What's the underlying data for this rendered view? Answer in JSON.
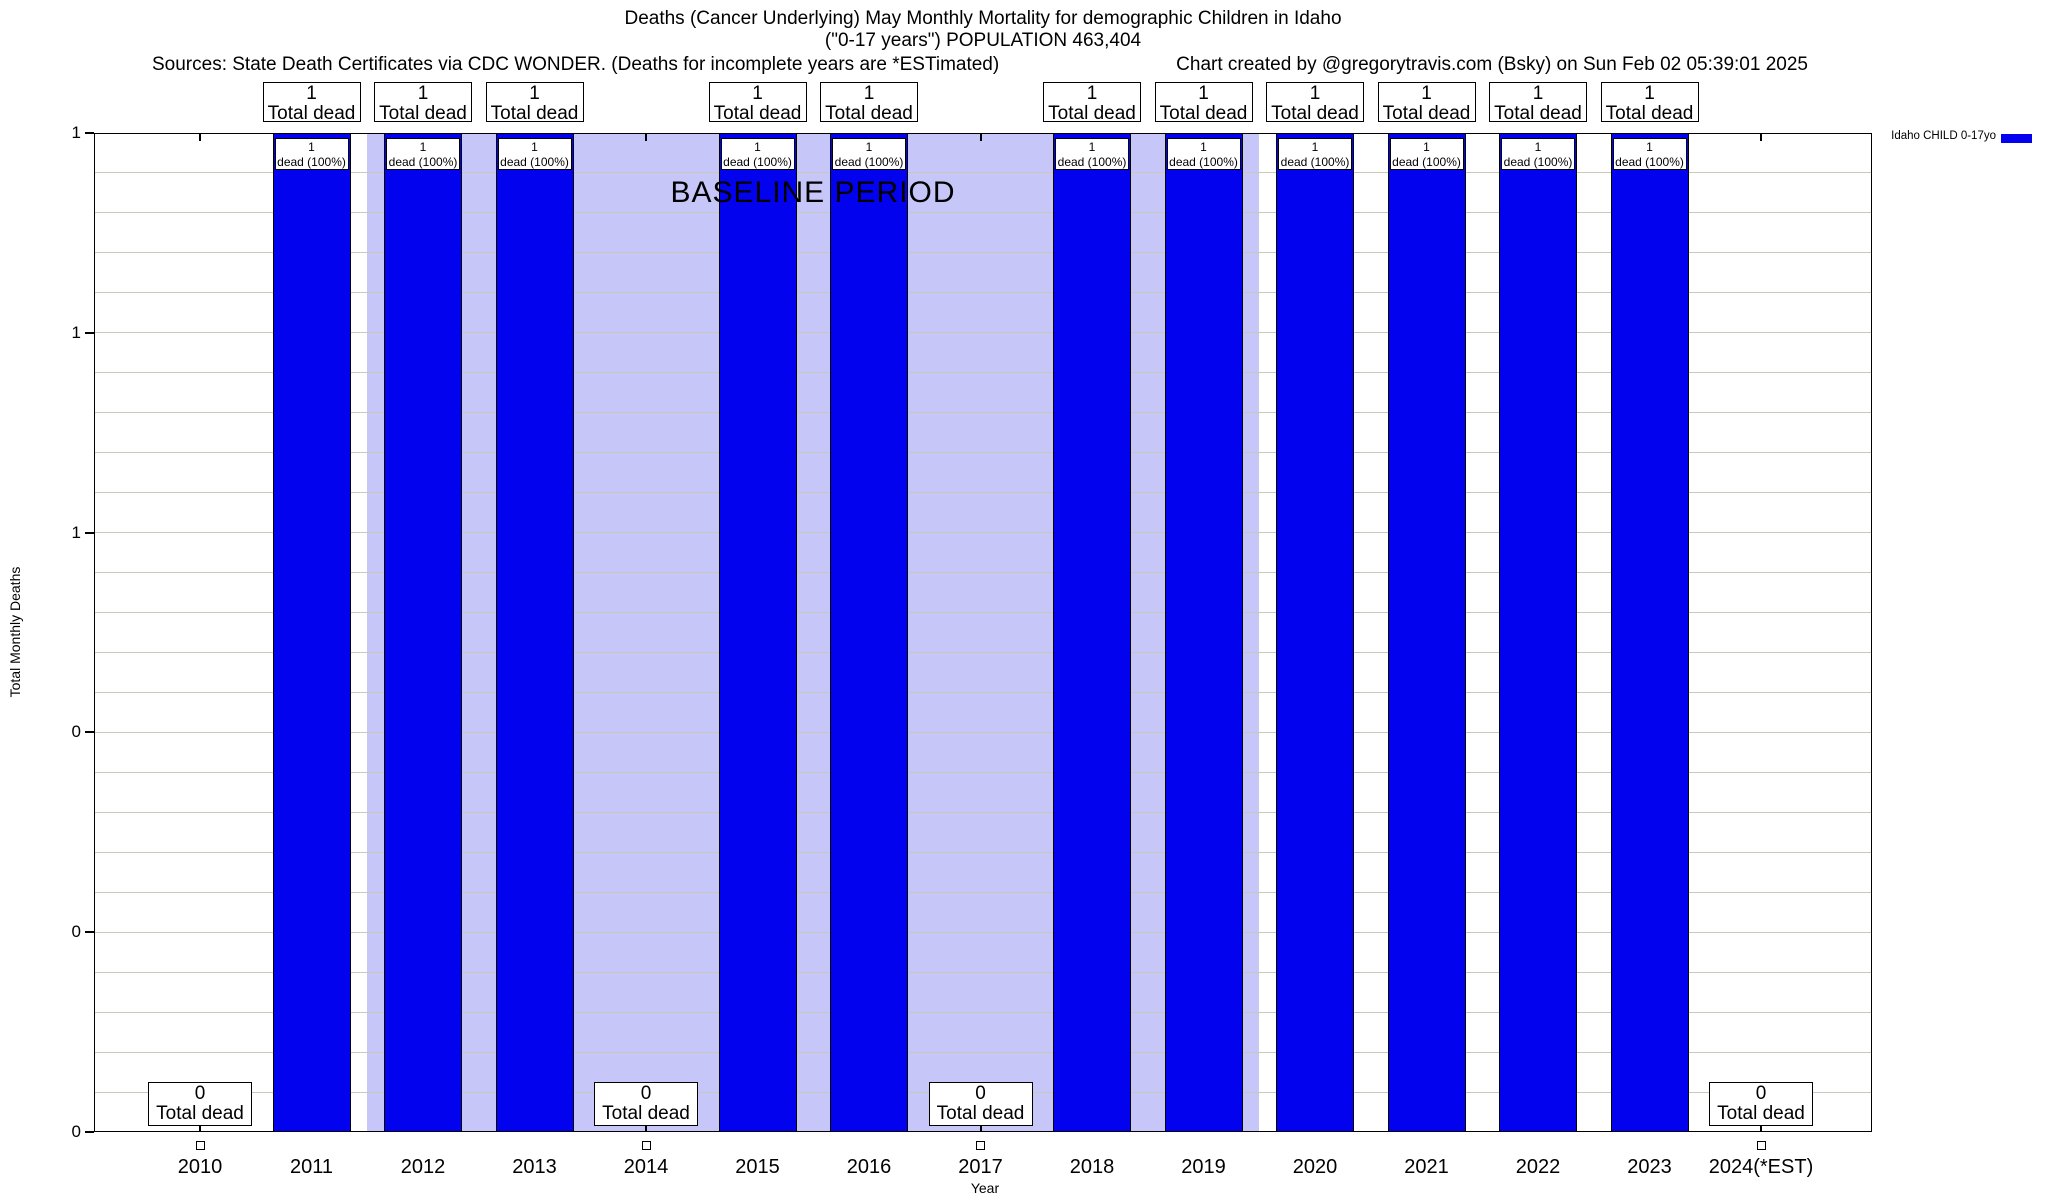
{
  "chart_data": {
    "type": "bar",
    "title": "Deaths (Cancer Underlying) May Monthly Mortality for demographic Children in Idaho",
    "subtitle": "(\"0-17 years\") POPULATION 463,404",
    "xlabel": "Year",
    "ylabel": "Total Monthly Deaths",
    "ylim": [
      0,
      1
    ],
    "y_tick_labels_top_to_bottom": [
      "1",
      "1",
      "1",
      "0",
      "0",
      "0"
    ],
    "grid": "horizontal-minor-lines",
    "legend_label": "Idaho CHILD 0-17yo",
    "legend_position": "top-right-outside",
    "categories": [
      "2010",
      "2011",
      "2012",
      "2013",
      "2014",
      "2015",
      "2016",
      "2017",
      "2018",
      "2019",
      "2020",
      "2021",
      "2022",
      "2023",
      "2024(*EST)"
    ],
    "values": [
      0,
      1,
      1,
      1,
      0,
      1,
      1,
      0,
      1,
      1,
      1,
      1,
      1,
      1,
      0
    ],
    "baseline_period": {
      "label": "BASELINE PERIOD",
      "start_category": "2012",
      "end_category": "2019"
    },
    "annotations": {
      "value_box_line2": "Total dead",
      "inner_box_line2": "dead (100%)",
      "zero_years_marker": "open-square-below-axis"
    },
    "colors": {
      "bar": "#0202ee",
      "baseline_bg": "#c6c6f8",
      "grid_line": "#c9c9bb"
    }
  },
  "notes": {
    "sources": "Sources: State Death Certificates via CDC WONDER. (Deaths for incomplete years are *ESTimated)",
    "credit": "Chart created by @gregorytravis.com (Bsky) on Sun Feb 02 05:39:01 2025"
  }
}
